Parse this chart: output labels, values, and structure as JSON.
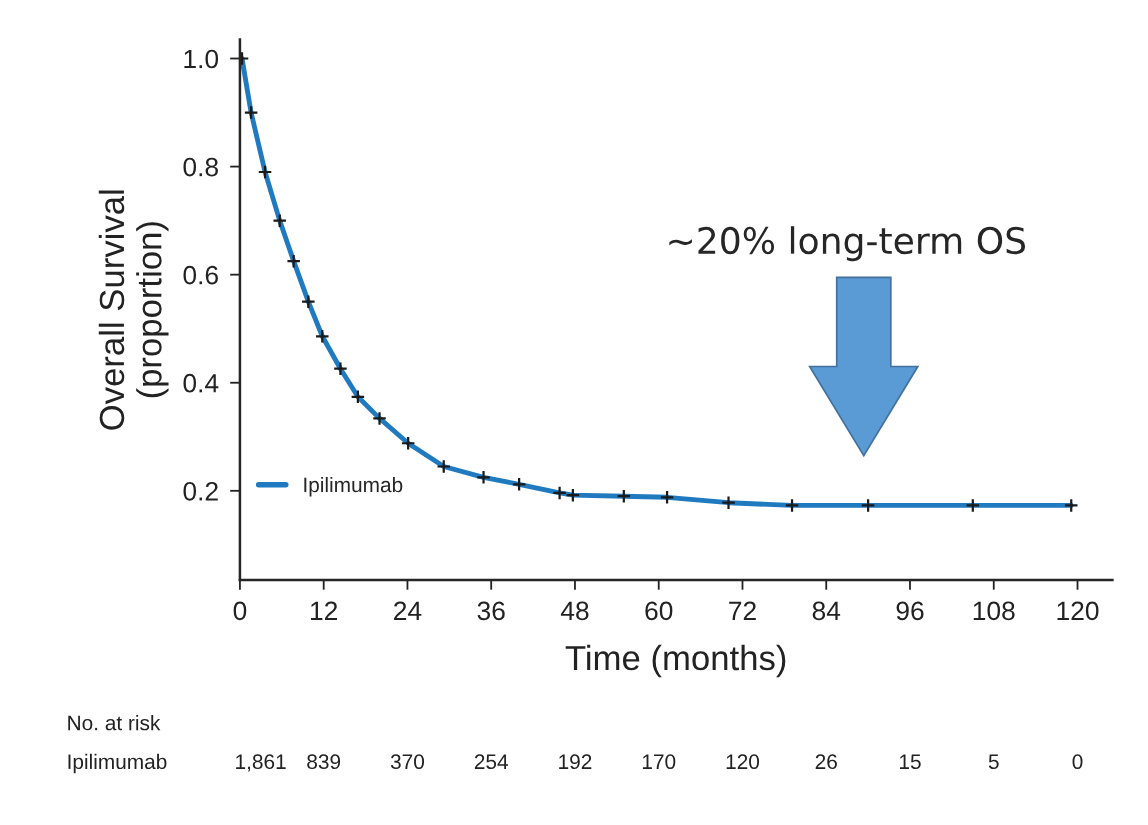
{
  "chart_data": {
    "type": "line",
    "xlabel": "Time (months)",
    "ylabel": "Overall Survival\n(proportion)",
    "x": [
      0.3,
      1.6,
      3.6,
      5.7,
      7.7,
      9.8,
      11.8,
      14.4,
      16.9,
      20.0,
      24.1,
      29.2,
      34.9,
      40.0,
      45.8,
      47.7,
      55.0,
      61.2,
      70.0,
      79.1,
      90.0,
      105.0,
      119.1
    ],
    "series": [
      {
        "name": "Ipilimumab",
        "color": "#1f7ac0",
        "values": [
          1.0,
          0.9,
          0.79,
          0.7,
          0.625,
          0.55,
          0.486,
          0.426,
          0.374,
          0.334,
          0.288,
          0.245,
          0.225,
          0.212,
          0.196,
          0.192,
          0.19,
          0.188,
          0.178,
          0.173,
          0.173,
          0.173,
          0.173
        ]
      }
    ],
    "xlim": [
      0,
      125
    ],
    "xticks": [
      0,
      12,
      24,
      36,
      48,
      60,
      72,
      84,
      96,
      108,
      120
    ],
    "ylim": [
      0.035,
      1.035
    ],
    "yticks": [
      0.2,
      0.4,
      0.6,
      0.8,
      {
        "value": 1.0,
        "label": "1.0"
      }
    ],
    "marker": "cross",
    "line_style": "solid",
    "grid": false,
    "legend": "bottom left",
    "annotations": [
      "~20% long-term OS",
      "No. at risk",
      "Ipilimumab",
      "1,861",
      "839",
      "370",
      "254",
      "192",
      "170",
      "120",
      "26",
      "15",
      "5",
      "0"
    ]
  }
}
